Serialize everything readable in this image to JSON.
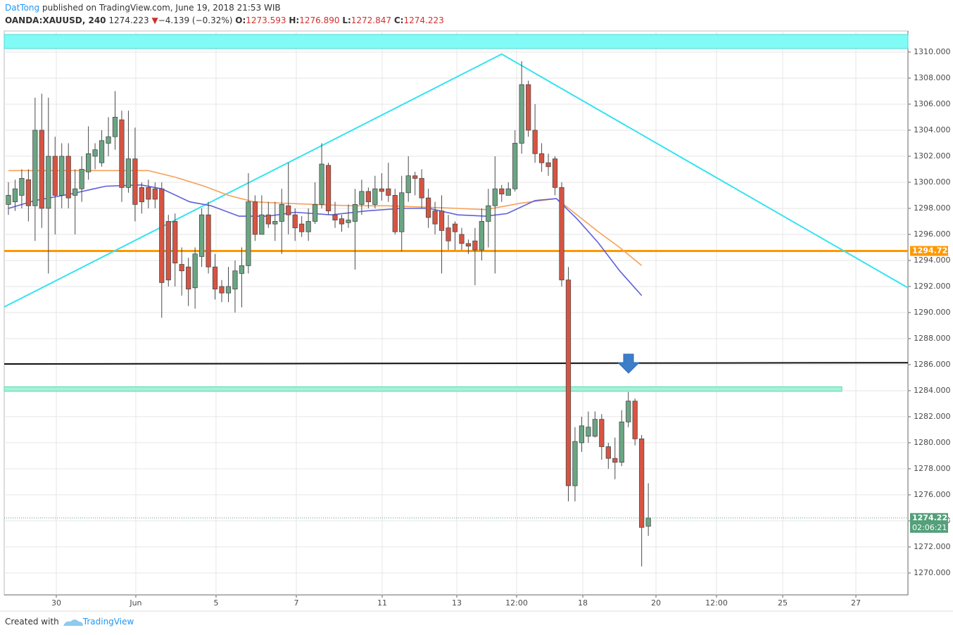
{
  "header": {
    "author": "DatTong",
    "published": "published on TradingView.com, June 19, 2018 21:53 WIB",
    "symbol": "OANDA:XAUUSD, 240",
    "last": "1274.223",
    "arrow": "▼",
    "change": "−4.139 (−0.32%)",
    "o_label": "O:",
    "o": "1273.593",
    "h_label": "H:",
    "h": "1276.890",
    "l_label": "L:",
    "l": "1272.847",
    "c_label": "C:",
    "c": "1274.223"
  },
  "footer": {
    "created": "Created with",
    "brand": "TradingView"
  },
  "chart_data": {
    "type": "candlestick",
    "up_color": "#6ba583",
    "down_color": "#d75442",
    "wick_color": "#4a4a4a",
    "x": [
      0,
      1,
      2,
      3,
      4,
      5,
      6,
      7,
      8,
      9,
      10,
      11,
      12,
      13,
      14,
      15,
      16,
      17,
      18,
      19,
      20,
      21,
      22,
      23,
      24,
      25,
      26,
      27,
      28,
      29,
      30,
      31,
      32,
      33,
      34,
      35,
      36,
      37,
      38,
      39,
      40,
      41,
      42,
      43,
      44,
      45,
      46,
      47,
      48,
      49,
      50,
      51,
      52,
      53,
      54,
      55,
      56,
      57,
      58,
      59,
      60,
      61,
      62,
      63,
      64,
      65,
      66,
      67,
      68,
      69,
      70,
      71,
      72,
      73,
      74,
      75,
      76,
      77,
      78,
      79,
      80,
      81,
      82,
      83,
      84,
      85,
      86,
      87,
      88,
      89,
      90,
      91,
      92,
      93,
      94,
      95,
      96
    ],
    "open": [
      1298.3,
      1298.5,
      1299,
      1300.2,
      1298.2,
      1304,
      1298,
      1302,
      1299,
      1302,
      1299,
      1299.5,
      1300.8,
      1302,
      1301.5,
      1303,
      1303.5,
      1304.8,
      1299.6,
      1301.8,
      1299.6,
      1299.6,
      1299.5,
      1299.5,
      1297,
      1297,
      1293.7,
      1293.5,
      1291.9,
      1294.3,
      1297.5,
      1293.5,
      1292,
      1291.5,
      1291.8,
      1293,
      1293.6,
      1298.5,
      1296,
      1297.5,
      1296.8,
      1297,
      1298.2,
      1297.5,
      1296.8,
      1296.2,
      1297,
      1298.3,
      1301.3,
      1297.5,
      1297.2,
      1296.9,
      1297,
      1298.3,
      1299.3,
      1298.3,
      1299.5,
      1299.5,
      1299,
      1296.2,
      1299.2,
      1300.5,
      1300.3,
      1298.8,
      1297.8,
      1297.8,
      1296.5,
      1296.8,
      1296,
      1295.3,
      1295.5,
      1294.8,
      1297,
      1298.2,
      1299.5,
      1299,
      1299.5,
      1303,
      1307.5,
      1304,
      1302.2,
      1301.5,
      1301.8,
      1299.6,
      1292.5,
      1276.7,
      1280,
      1280.5,
      1280.5,
      1281.8,
      1279.7,
      1278.8,
      1278.5,
      1281.6,
      1283.2,
      1280.3,
      1273.593
    ],
    "high": [
      1300,
      1300.2,
      1301,
      1301,
      1306.5,
      1306.8,
      1306.5,
      1303.5,
      1303,
      1303,
      1301,
      1302,
      1304.3,
      1303,
      1304,
      1305,
      1307,
      1305.5,
      1305.5,
      1304.2,
      1300,
      1300.2,
      1300,
      1300,
      1297.5,
      1297.6,
      1295,
      1294.2,
      1295,
      1298,
      1298.5,
      1294.5,
      1292.5,
      1293.5,
      1294,
      1295,
      1300.7,
      1299,
      1299,
      1298.5,
      1298.5,
      1299.5,
      1301.5,
      1298,
      1297.4,
      1298,
      1300,
      1303,
      1301.5,
      1298.5,
      1297.5,
      1298.3,
      1299.5,
      1300.2,
      1299.6,
      1300.5,
      1300.7,
      1301.5,
      1299.5,
      1300.5,
      1302,
      1300.8,
      1301,
      1299.5,
      1298.5,
      1299,
      1297.5,
      1297,
      1296.5,
      1295.6,
      1296.5,
      1298,
      1299.5,
      1302,
      1299.8,
      1300,
      1304,
      1309.3,
      1307.8,
      1306,
      1303,
      1302.2,
      1302,
      1300,
      1293.5,
      1281.2,
      1282,
      1282.4,
      1282.4,
      1282.2,
      1280,
      1280.4,
      1282.5,
      1283.9,
      1283.4,
      1280.6,
      1276.89
    ],
    "low": [
      1297.5,
      1297.8,
      1298,
      1297,
      1295.5,
      1296.5,
      1293,
      1296,
      1298,
      1298,
      1296,
      1298.5,
      1300.2,
      1301,
      1301.2,
      1302,
      1302.5,
      1298.5,
      1299.2,
      1297,
      1297.6,
      1298,
      1298,
      1289.6,
      1292,
      1292,
      1291.3,
      1290.5,
      1290.3,
      1293.5,
      1293,
      1291,
      1290.8,
      1290.8,
      1290,
      1290.4,
      1293,
      1295.5,
      1296,
      1296.5,
      1295.5,
      1294.5,
      1296,
      1295.5,
      1295.8,
      1295.5,
      1296.8,
      1298,
      1297.5,
      1296.5,
      1296.2,
      1296.5,
      1293.3,
      1297.5,
      1298,
      1298,
      1298.6,
      1298.5,
      1296,
      1294.7,
      1298.5,
      1299,
      1298,
      1296.5,
      1296,
      1293,
      1294.8,
      1294.8,
      1294.8,
      1294.5,
      1292.1,
      1294,
      1295,
      1293,
      1298.5,
      1299,
      1299.3,
      1302.2,
      1303.5,
      1301.5,
      1300.8,
      1300.5,
      1299,
      1292,
      1275.5,
      1275.5,
      1279.3,
      1280,
      1280.4,
      1278.7,
      1278,
      1277.2,
      1278.2,
      1281.2,
      1279.8,
      1270.5,
      1272.847
    ],
    "close": [
      1299,
      1299.5,
      1300.3,
      1298.2,
      1304,
      1298,
      1302,
      1299,
      1302,
      1298.8,
      1299.5,
      1301,
      1302.2,
      1302.5,
      1303.2,
      1303.5,
      1305,
      1299.6,
      1301.8,
      1298.3,
      1298.5,
      1298.7,
      1298.7,
      1292.3,
      1292.5,
      1293.8,
      1293.2,
      1291.8,
      1294.5,
      1297.5,
      1293.5,
      1291.8,
      1291.5,
      1292,
      1293.2,
      1293.6,
      1298.5,
      1296,
      1297.5,
      1296.8,
      1297,
      1298.3,
      1297.5,
      1296.5,
      1296.2,
      1297,
      1298.3,
      1301.4,
      1297.8,
      1297.1,
      1296.8,
      1297.1,
      1298.3,
      1299.3,
      1298.5,
      1299.5,
      1299.3,
      1299,
      1296.2,
      1299.2,
      1300.5,
      1300.3,
      1298.8,
      1297.3,
      1296.8,
      1296.3,
      1295.5,
      1296.2,
      1295.3,
      1295.1,
      1294.8,
      1297,
      1298.2,
      1299.5,
      1299.1,
      1299.5,
      1303,
      1307.5,
      1304,
      1302.2,
      1301.5,
      1301.2,
      1299.6,
      1292.5,
      1276.7,
      1280.1,
      1281.3,
      1281.2,
      1281.8,
      1279.7,
      1278.8,
      1278.5,
      1281.6,
      1283.2,
      1280.3,
      1273.5,
      1274.223
    ],
    "series": [
      {
        "color": "#f5a15a",
        "x": [
          0,
          21,
          25,
          29.4,
          33,
          36.8,
          41,
          46,
          51.5,
          56.8,
          62,
          67.4,
          71.6,
          76.9,
          82.2,
          84.3,
          88.5,
          91.7,
          95
        ],
        "values": [
          1300.9,
          1300.9,
          1300.4,
          1299.7,
          1299.0,
          1298.5,
          1298.4,
          1298.3,
          1298.2,
          1298.2,
          1298.1,
          1298.0,
          1297.9,
          1298.4,
          1298.75,
          1297.9,
          1296.2,
          1295.0,
          1293.6
        ]
      },
      {
        "color": "#5f5fdc",
        "x": [
          0,
          4,
          9.3,
          14.6,
          19.9,
          23,
          27.2,
          30.4,
          34.6,
          38.9,
          43,
          48.4,
          53.6,
          58.9,
          63.1,
          67.4,
          71.6,
          74.8,
          79,
          82.2,
          85.3,
          88.5,
          91.7,
          95
        ],
        "values": [
          1298.0,
          1298.6,
          1299.1,
          1299.7,
          1299.8,
          1299.5,
          1298.5,
          1298.2,
          1297.4,
          1297.4,
          1297.7,
          1297.5,
          1297.8,
          1298.0,
          1298.0,
          1297.5,
          1297.4,
          1297.6,
          1298.6,
          1298.75,
          1297.2,
          1295.35,
          1293.2,
          1291.3
        ]
      }
    ],
    "zones": [
      {
        "from": 1310.27,
        "to": 1311.35,
        "x_end": 134.95,
        "color": "#80fbf6",
        "border": "#4fd8d8"
      },
      {
        "from": 1283.95,
        "to": 1284.3,
        "x_end": 125.03,
        "color": "#a3f3d6",
        "border": "#5fd6b0"
      }
    ],
    "trend_lines": [
      {
        "x": [
          -0.63,
          74,
          134.95
        ],
        "values": [
          1290.43,
          1309.84,
          1291.9
        ],
        "color": "#33e4ef",
        "width": 2
      },
      {
        "x": [
          -0.63,
          134.95
        ],
        "values": [
          1286.05,
          1286.15
        ],
        "color": "#111111",
        "width": 2
      }
    ],
    "price_line": {
      "value": 1294.729,
      "color": "#ff9800"
    },
    "countdown": "02:06:21",
    "last_color": "#53a07a",
    "xlim": [
      -0.63,
      134.95
    ],
    "ylim": [
      1268.32,
      1311.62
    ],
    "xticks": [
      {
        "value": 7.18,
        "label": "30"
      },
      {
        "value": 19.11,
        "label": "Jun"
      },
      {
        "value": 31.15,
        "label": "5"
      },
      {
        "value": 43.19,
        "label": "7"
      },
      {
        "value": 56.07,
        "label": "11"
      },
      {
        "value": 67.27,
        "label": "13"
      },
      {
        "value": 76.24,
        "label": "12:00"
      },
      {
        "value": 86.17,
        "label": "18"
      },
      {
        "value": 97.15,
        "label": "20"
      },
      {
        "value": 106.23,
        "label": "12:00"
      },
      {
        "value": 116.16,
        "label": "25"
      },
      {
        "value": 127.14,
        "label": "27"
      }
    ],
    "yticks": [
      {
        "value": 1270,
        "label": "1270.000"
      },
      {
        "value": 1272,
        "label": "1272.000"
      },
      {
        "value": 1274,
        "label": "1274.000"
      },
      {
        "value": 1276,
        "label": "1276.000"
      },
      {
        "value": 1278,
        "label": "1278.000"
      },
      {
        "value": 1280,
        "label": "1280.000"
      },
      {
        "value": 1282,
        "label": "1282.000"
      },
      {
        "value": 1284,
        "label": "1284.000"
      },
      {
        "value": 1286,
        "label": "1286.000"
      },
      {
        "value": 1288,
        "label": "1288.000"
      },
      {
        "value": 1290,
        "label": "1290.000"
      },
      {
        "value": 1292,
        "label": "1292.000"
      },
      {
        "value": 1294,
        "label": "1294.000"
      },
      {
        "value": 1296,
        "label": "1296.000"
      },
      {
        "value": 1298,
        "label": "1298.000"
      },
      {
        "value": 1300,
        "label": "1300.000"
      },
      {
        "value": 1302,
        "label": "1302.000"
      },
      {
        "value": 1304,
        "label": "1304.000"
      },
      {
        "value": 1306,
        "label": "1306.000"
      },
      {
        "value": 1308,
        "label": "1308.000"
      },
      {
        "value": 1310,
        "label": "1310.000"
      }
    ],
    "grid": true
  }
}
